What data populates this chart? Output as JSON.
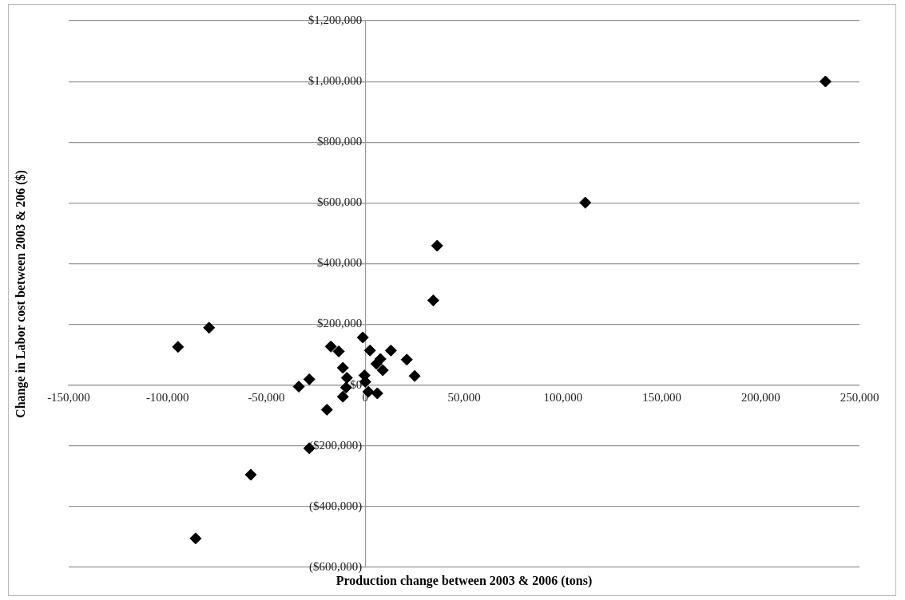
{
  "chart_data": {
    "type": "scatter",
    "xlabel": "Production change between 2003 & 2006 (tons)",
    "ylabel": "Change in Labor cost between 2003 & 206 ($)",
    "x": [
      232800,
      111300,
      36400,
      34400,
      -79000,
      -94700,
      -57900,
      -85800,
      -28300,
      -19400,
      -1200,
      -17400,
      -13400,
      2400,
      13000,
      21000,
      7700,
      5700,
      8900,
      25000,
      -11300,
      -9300,
      -400,
      0,
      -28300,
      -33600,
      -9700,
      -11300,
      1600,
      6100
    ],
    "series": [
      {
        "color": "#000000",
        "values": [
          1000000,
          601000,
          459000,
          279000,
          189000,
          126000,
          -295000,
          -505000,
          -208000,
          -81000,
          157000,
          127000,
          111000,
          114000,
          114000,
          84000,
          86000,
          70000,
          49000,
          30000,
          57000,
          24000,
          32000,
          11000,
          19000,
          -5000,
          -8000,
          -38000,
          -22000,
          -27000
        ]
      }
    ],
    "xlim": [
      -150000,
      250000
    ],
    "xticks": [
      {
        "value": -150000,
        "label": "-150,000"
      },
      {
        "value": -100000,
        "label": "-100,000"
      },
      {
        "value": -50000,
        "label": "-50,000"
      },
      {
        "value": 0,
        "label": "0"
      },
      {
        "value": 50000,
        "label": "50,000"
      },
      {
        "value": 100000,
        "label": "100,000"
      },
      {
        "value": 150000,
        "label": "150,000"
      },
      {
        "value": 200000,
        "label": "200,000"
      },
      {
        "value": 250000,
        "label": "250,000"
      }
    ],
    "ylim": [
      -600000,
      1200000
    ],
    "yticks": [
      {
        "value": -600000,
        "label": "($600,000)"
      },
      {
        "value": -400000,
        "label": "($400,000)"
      },
      {
        "value": -200000,
        "label": "($200,000)"
      },
      {
        "value": 0,
        "label": "$0"
      },
      {
        "value": 200000,
        "label": "$200,000"
      },
      {
        "value": 400000,
        "label": "$400,000"
      },
      {
        "value": 600000,
        "label": "$600,000"
      },
      {
        "value": 800000,
        "label": "$800,000"
      },
      {
        "value": 1000000,
        "label": "$1,000,000"
      },
      {
        "value": 1200000,
        "label": "$1,200,000"
      }
    ],
    "grid": "y",
    "legend": false,
    "marker": "diamond"
  }
}
